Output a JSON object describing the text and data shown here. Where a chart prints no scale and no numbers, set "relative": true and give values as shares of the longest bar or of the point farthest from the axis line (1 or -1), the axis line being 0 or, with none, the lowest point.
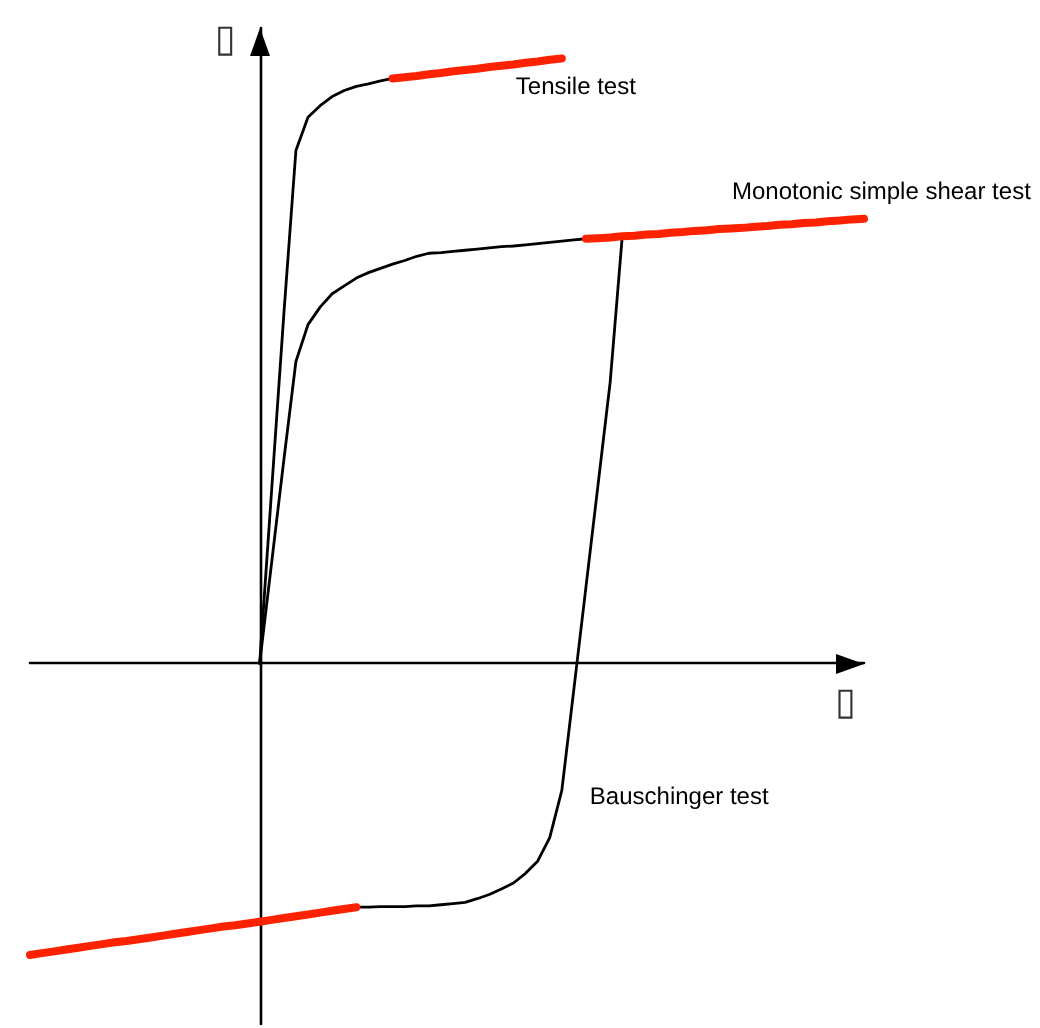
{
  "chart_data": {
    "type": "line",
    "xlabel": "▯",
    "ylabel": "▯",
    "relative": true,
    "marker": "none",
    "categories": [
      null,
      null,
      null,
      null,
      null,
      null,
      null,
      null,
      null,
      null,
      null,
      null,
      null,
      null,
      null,
      null,
      null,
      null,
      null,
      null,
      null,
      null,
      null,
      null,
      null,
      null,
      null,
      null,
      null,
      null,
      null,
      null,
      null,
      null,
      null,
      null,
      null,
      null,
      null,
      null,
      null,
      null,
      null,
      null,
      null,
      null,
      null,
      null,
      null,
      null,
      null,
      null,
      null,
      null,
      null,
      null,
      null,
      null,
      null,
      null,
      null,
      null,
      null,
      null,
      null,
      null,
      null,
      null,
      null,
      null
    ],
    "series": [
      {
        "color": "#000000",
        "values": [
          null,
          null,
          null,
          null,
          null,
          null,
          null,
          null,
          null,
          null,
          null,
          null,
          null,
          null,
          null,
          null,
          null,
          null,
          null,
          0,
          0.289,
          0.577,
          0.848,
          0.903,
          0.922,
          0.937,
          0.947,
          0.954,
          0.958,
          0.963,
          0.967,
          null,
          null,
          null,
          null,
          null,
          null,
          null,
          null,
          null,
          null,
          null,
          null,
          null,
          null,
          null,
          null,
          null,
          null,
          null,
          null,
          null,
          null,
          null,
          null,
          null,
          null,
          null,
          null,
          null,
          null,
          null,
          null,
          null,
          null,
          null,
          null,
          null,
          null,
          null
        ]
      },
      {
        "name": "Tensile test",
        "color": "#ff2200",
        "values": [
          null,
          null,
          null,
          null,
          null,
          null,
          null,
          null,
          null,
          null,
          null,
          null,
          null,
          null,
          null,
          null,
          null,
          null,
          null,
          null,
          null,
          null,
          null,
          null,
          null,
          null,
          null,
          null,
          null,
          null,
          0.967,
          0.969,
          0.971,
          0.974,
          0.976,
          0.979,
          0.981,
          0.983,
          0.986,
          0.988,
          0.99,
          0.993,
          0.995,
          0.998,
          1,
          null,
          null,
          null,
          null,
          null,
          null,
          null,
          null,
          null,
          null,
          null,
          null,
          null,
          null,
          null,
          null,
          null,
          null,
          null,
          null,
          null,
          null,
          null,
          null,
          null
        ]
      },
      {
        "color": "#000000",
        "values": [
          null,
          null,
          null,
          null,
          null,
          null,
          null,
          null,
          null,
          null,
          null,
          null,
          null,
          null,
          null,
          null,
          null,
          null,
          null,
          0,
          0.168,
          0.336,
          0.499,
          0.56,
          0.589,
          0.611,
          0.624,
          0.637,
          0.646,
          0.653,
          0.66,
          0.666,
          0.673,
          0.678,
          0.679,
          0.681,
          0.683,
          0.685,
          0.687,
          0.689,
          0.69,
          0.692,
          0.694,
          0.696,
          0.698,
          0.7,
          0.702,
          null,
          null,
          null,
          null,
          null,
          null,
          null,
          null,
          null,
          null,
          null,
          null,
          null,
          null,
          null,
          null,
          null,
          null,
          null,
          null,
          null,
          null,
          null
        ]
      },
      {
        "name": "Monotonic simple shear test",
        "color": "#ff2200",
        "values": [
          null,
          null,
          null,
          null,
          null,
          null,
          null,
          null,
          null,
          null,
          null,
          null,
          null,
          null,
          null,
          null,
          null,
          null,
          null,
          null,
          null,
          null,
          null,
          null,
          null,
          null,
          null,
          null,
          null,
          null,
          null,
          null,
          null,
          null,
          null,
          null,
          null,
          null,
          null,
          null,
          null,
          null,
          null,
          null,
          null,
          null,
          0.702,
          0.703,
          0.704,
          0.706,
          0.707,
          0.709,
          0.71,
          0.712,
          0.713,
          0.715,
          0.716,
          0.718,
          0.719,
          0.72,
          0.722,
          0.723,
          0.725,
          0.726,
          0.728,
          0.729,
          0.731,
          0.732,
          0.734,
          0.735
        ]
      },
      {
        "name": "Bauschinger test",
        "color": "#000000",
        "values": [
          null,
          null,
          null,
          null,
          null,
          null,
          null,
          null,
          null,
          null,
          null,
          null,
          null,
          null,
          null,
          null,
          null,
          null,
          null,
          null,
          null,
          null,
          null,
          null,
          null,
          null,
          null,
          -0.403,
          -0.403,
          -0.402,
          -0.402,
          -0.402,
          -0.401,
          -0.401,
          -0.399,
          -0.397,
          -0.395,
          -0.389,
          -0.382,
          -0.373,
          -0.363,
          -0.347,
          -0.327,
          -0.288,
          -0.21,
          -0.042,
          0.127,
          0.296,
          0.465,
          0.706,
          null,
          null,
          null,
          null,
          null,
          null,
          null,
          null,
          null,
          null,
          null,
          null,
          null,
          null,
          null,
          null,
          null,
          null,
          null,
          null
        ]
      },
      {
        "color": "#ff2200",
        "values": [
          -0.482,
          -0.479,
          -0.476,
          -0.473,
          -0.47,
          -0.467,
          -0.464,
          -0.461,
          -0.459,
          -0.456,
          -0.453,
          -0.45,
          -0.447,
          -0.444,
          -0.441,
          -0.438,
          -0.435,
          -0.433,
          -0.43,
          -0.427,
          -0.424,
          -0.421,
          -0.418,
          -0.415,
          -0.412,
          -0.409,
          -0.406,
          -0.403,
          null,
          null,
          null,
          null,
          null,
          null,
          null,
          null,
          null,
          null,
          null,
          null,
          null,
          null,
          null,
          null,
          null,
          null,
          null,
          null,
          null,
          null,
          null,
          null,
          null,
          null,
          null,
          null,
          null,
          null,
          null,
          null,
          null,
          null,
          null,
          null,
          null,
          null,
          null,
          null,
          null,
          null
        ]
      }
    ]
  }
}
